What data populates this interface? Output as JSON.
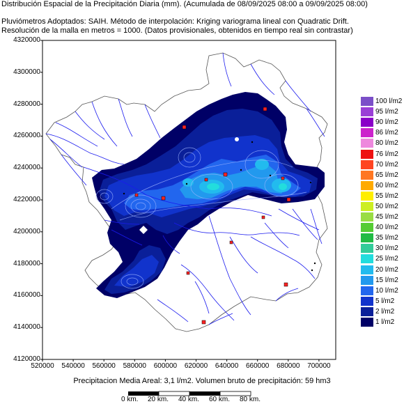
{
  "header": {
    "line1": "Distribución Espacial de la Precipitación Diaria (mm). (Acumulada de 08/09/2025 08:00 a 09/09/2025 08:00)",
    "line2": "Pluviómetros Adoptados: SAIH.  Método de interpolación: Kriging variograma lineal con Quadratic Drift.",
    "line3": "Resolución de la malla en metros = 1000. (Datos provisionales, obtenidos en tiempo real sin contrastar)"
  },
  "axes": {
    "y_ticks": [
      "4320000",
      "4300000",
      "4280000",
      "4260000",
      "4240000",
      "4220000",
      "4200000",
      "4180000",
      "4160000",
      "4140000",
      "4120000"
    ],
    "x_ticks": [
      "520000",
      "540000",
      "560000",
      "580000",
      "600000",
      "620000",
      "640000",
      "660000",
      "680000",
      "700000"
    ]
  },
  "legend": [
    {
      "label": "100 l/m2",
      "color": "#7b4fc8"
    },
    {
      "label": "95 l/m2",
      "color": "#9a3fd6"
    },
    {
      "label": "90 l/m2",
      "color": "#8a00c8"
    },
    {
      "label": "86 l/m2",
      "color": "#cc22cc"
    },
    {
      "label": "80 l/m2",
      "color": "#ee88dd"
    },
    {
      "label": "76 l/m2",
      "color": "#ee1111"
    },
    {
      "label": "70 l/m2",
      "color": "#ff4422"
    },
    {
      "label": "65 l/m2",
      "color": "#ff7722"
    },
    {
      "label": "60 l/m2",
      "color": "#ffaa00"
    },
    {
      "label": "55 l/m2",
      "color": "#ffee00"
    },
    {
      "label": "50 l/m2",
      "color": "#ccee22"
    },
    {
      "label": "45 l/m2",
      "color": "#99dd44"
    },
    {
      "label": "40 l/m2",
      "color": "#55cc33"
    },
    {
      "label": "35 l/m2",
      "color": "#22bb44"
    },
    {
      "label": "30 l/m2",
      "color": "#33cc99"
    },
    {
      "label": "25 l/m2",
      "color": "#22dddd"
    },
    {
      "label": "20 l/m2",
      "color": "#22bbee"
    },
    {
      "label": "15 l/m2",
      "color": "#2299ee"
    },
    {
      "label": "10 l/m2",
      "color": "#2266ee"
    },
    {
      "label": "5 l/m2",
      "color": "#1133cc"
    },
    {
      "label": "2 l/m2",
      "color": "#0a1f99"
    },
    {
      "label": "1 l/m2",
      "color": "#000066"
    }
  ],
  "footer": {
    "summary": "Precipitacion Media Areal: 3,1 l/m2. Volumen bruto de precipitación: 59 hm3"
  },
  "scale_bar": {
    "labels": [
      "0 km.",
      "20 km.",
      "40 km.",
      "60 km.",
      "80 km."
    ]
  },
  "colors": {
    "river": "#1a1aee",
    "basin_outline": "#555555",
    "town": "#ff2222"
  }
}
